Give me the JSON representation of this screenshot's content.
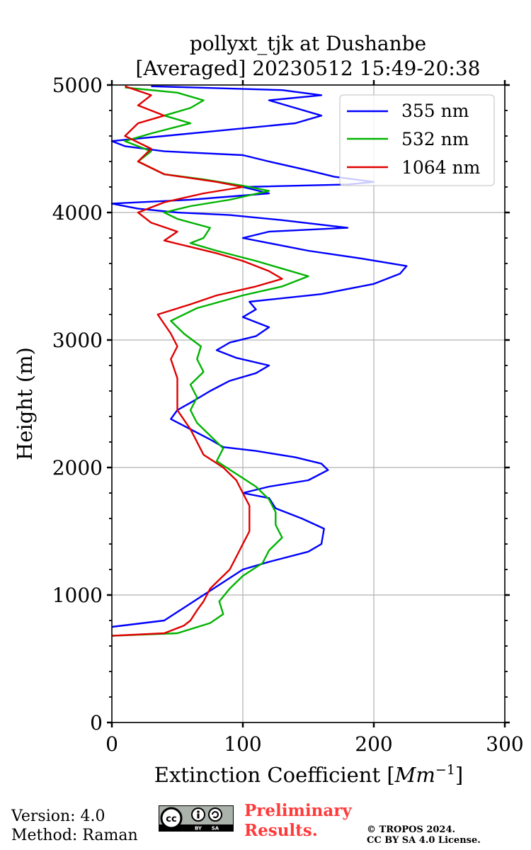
{
  "chart_data": {
    "type": "line",
    "title": [
      "pollyxt_tjk at Dushanbe",
      "[Averaged] 20230512 15:49-20:38"
    ],
    "xlabel": "Extinction Coefficient [",
    "xlabel_unit": "Mm",
    "xlabel_exp": "−1",
    "xlabel_close": "]",
    "ylabel": "Height (m)",
    "xlim": [
      0,
      300
    ],
    "ylim": [
      0,
      5000
    ],
    "xticks": [
      0,
      100,
      200,
      300
    ],
    "xtick_labels": [
      "0",
      "100",
      "200",
      "300"
    ],
    "yticks": [
      0,
      1000,
      2000,
      3000,
      4000,
      5000
    ],
    "ytick_labels": [
      "0",
      "1000",
      "2000",
      "3000",
      "4000",
      "5000"
    ],
    "grid": true,
    "legend_position": "top-right",
    "series": [
      {
        "name": "355 nm",
        "color": "#0000ff",
        "points": [
          [
            0,
            750
          ],
          [
            40,
            800
          ],
          [
            55,
            900
          ],
          [
            70,
            1000
          ],
          [
            85,
            1100
          ],
          [
            100,
            1200
          ],
          [
            120,
            1260
          ],
          [
            150,
            1340
          ],
          [
            160,
            1400
          ],
          [
            162,
            1520
          ],
          [
            145,
            1600
          ],
          [
            125,
            1680
          ],
          [
            120,
            1760
          ],
          [
            100,
            1800
          ],
          [
            120,
            1850
          ],
          [
            150,
            1900
          ],
          [
            165,
            1980
          ],
          [
            160,
            2030
          ],
          [
            140,
            2080
          ],
          [
            110,
            2130
          ],
          [
            85,
            2160
          ],
          [
            75,
            2220
          ],
          [
            60,
            2300
          ],
          [
            45,
            2380
          ],
          [
            50,
            2450
          ],
          [
            62,
            2520
          ],
          [
            75,
            2600
          ],
          [
            90,
            2680
          ],
          [
            110,
            2740
          ],
          [
            120,
            2800
          ],
          [
            95,
            2860
          ],
          [
            80,
            2920
          ],
          [
            90,
            2980
          ],
          [
            110,
            3030
          ],
          [
            120,
            3100
          ],
          [
            100,
            3180
          ],
          [
            110,
            3240
          ],
          [
            105,
            3300
          ],
          [
            160,
            3360
          ],
          [
            200,
            3440
          ],
          [
            220,
            3520
          ],
          [
            225,
            3580
          ],
          [
            190,
            3640
          ],
          [
            150,
            3700
          ],
          [
            120,
            3760
          ],
          [
            100,
            3800
          ],
          [
            120,
            3850
          ],
          [
            180,
            3880
          ],
          [
            130,
            3940
          ],
          [
            90,
            3980
          ],
          [
            50,
            4000
          ],
          [
            20,
            4030
          ],
          [
            0,
            4070
          ],
          [
            60,
            4100
          ],
          [
            120,
            4150
          ],
          [
            100,
            4200
          ],
          [
            180,
            4220
          ],
          [
            200,
            4240
          ],
          [
            170,
            4280
          ],
          [
            150,
            4330
          ],
          [
            120,
            4400
          ],
          [
            100,
            4450
          ],
          [
            40,
            4480
          ],
          [
            10,
            4520
          ],
          [
            0,
            4560
          ],
          [
            40,
            4600
          ],
          [
            80,
            4640
          ],
          [
            140,
            4700
          ],
          [
            160,
            4760
          ],
          [
            140,
            4820
          ],
          [
            120,
            4880
          ],
          [
            160,
            4920
          ],
          [
            130,
            4960
          ],
          [
            30,
            4990
          ]
        ]
      },
      {
        "name": "532 nm",
        "color": "#00b300",
        "points": [
          [
            0,
            680
          ],
          [
            50,
            700
          ],
          [
            75,
            780
          ],
          [
            85,
            850
          ],
          [
            82,
            950
          ],
          [
            90,
            1050
          ],
          [
            100,
            1150
          ],
          [
            115,
            1250
          ],
          [
            120,
            1350
          ],
          [
            130,
            1450
          ],
          [
            125,
            1550
          ],
          [
            125,
            1650
          ],
          [
            120,
            1750
          ],
          [
            110,
            1850
          ],
          [
            95,
            1950
          ],
          [
            80,
            2050
          ],
          [
            85,
            2150
          ],
          [
            75,
            2250
          ],
          [
            65,
            2350
          ],
          [
            60,
            2450
          ],
          [
            65,
            2550
          ],
          [
            60,
            2650
          ],
          [
            70,
            2750
          ],
          [
            65,
            2850
          ],
          [
            68,
            2950
          ],
          [
            55,
            3050
          ],
          [
            45,
            3150
          ],
          [
            65,
            3250
          ],
          [
            100,
            3350
          ],
          [
            130,
            3420
          ],
          [
            150,
            3500
          ],
          [
            130,
            3560
          ],
          [
            110,
            3620
          ],
          [
            80,
            3700
          ],
          [
            60,
            3760
          ],
          [
            70,
            3800
          ],
          [
            75,
            3880
          ],
          [
            50,
            3950
          ],
          [
            40,
            4000
          ],
          [
            60,
            4050
          ],
          [
            90,
            4100
          ],
          [
            120,
            4170
          ],
          [
            100,
            4210
          ],
          [
            70,
            4260
          ],
          [
            40,
            4300
          ],
          [
            20,
            4400
          ],
          [
            30,
            4480
          ],
          [
            10,
            4560
          ],
          [
            30,
            4620
          ],
          [
            60,
            4700
          ],
          [
            40,
            4760
          ],
          [
            60,
            4820
          ],
          [
            70,
            4880
          ],
          [
            50,
            4940
          ],
          [
            10,
            4980
          ]
        ]
      },
      {
        "name": "1064 nm",
        "color": "#e00000",
        "points": [
          [
            0,
            680
          ],
          [
            40,
            700
          ],
          [
            55,
            760
          ],
          [
            60,
            800
          ],
          [
            65,
            880
          ],
          [
            70,
            950
          ],
          [
            75,
            1050
          ],
          [
            80,
            1100
          ],
          [
            90,
            1200
          ],
          [
            95,
            1300
          ],
          [
            100,
            1400
          ],
          [
            105,
            1500
          ],
          [
            105,
            1600
          ],
          [
            105,
            1700
          ],
          [
            100,
            1800
          ],
          [
            95,
            1900
          ],
          [
            85,
            2000
          ],
          [
            70,
            2100
          ],
          [
            65,
            2200
          ],
          [
            60,
            2300
          ],
          [
            50,
            2450
          ],
          [
            50,
            2550
          ],
          [
            50,
            2700
          ],
          [
            45,
            2850
          ],
          [
            50,
            2950
          ],
          [
            45,
            3050
          ],
          [
            35,
            3200
          ],
          [
            60,
            3280
          ],
          [
            80,
            3350
          ],
          [
            110,
            3420
          ],
          [
            130,
            3480
          ],
          [
            120,
            3540
          ],
          [
            100,
            3620
          ],
          [
            80,
            3680
          ],
          [
            60,
            3730
          ],
          [
            40,
            3780
          ],
          [
            50,
            3850
          ],
          [
            30,
            3920
          ],
          [
            20,
            4000
          ],
          [
            40,
            4080
          ],
          [
            70,
            4150
          ],
          [
            100,
            4200
          ],
          [
            80,
            4240
          ],
          [
            40,
            4300
          ],
          [
            20,
            4400
          ],
          [
            30,
            4500
          ],
          [
            10,
            4600
          ],
          [
            20,
            4700
          ],
          [
            40,
            4760
          ],
          [
            20,
            4840
          ],
          [
            30,
            4920
          ],
          [
            10,
            4990
          ]
        ]
      }
    ]
  },
  "footer": {
    "version": "Version: 4.0",
    "method": "Method: Raman",
    "prelim_line1": "Preliminary",
    "prelim_line2": "Results.",
    "copyright_line1": "© TROPOS 2024.",
    "copyright_line2": "CC BY SA 4.0 License.",
    "cc_badge_label": "cc",
    "cc_by": "BY",
    "cc_sa": "SA"
  }
}
